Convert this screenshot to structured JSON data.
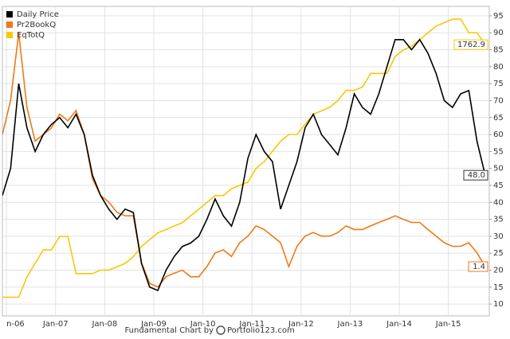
{
  "chart_data": {
    "type": "line",
    "credit": "Fundamental Chart by",
    "credit_brand": "Portfolio123.com",
    "x": [
      "2005-12",
      "2006-02",
      "2006-04",
      "2006-06",
      "2006-08",
      "2006-10",
      "2006-12",
      "2007-02",
      "2007-04",
      "2007-06",
      "2007-08",
      "2007-10",
      "2007-12",
      "2008-02",
      "2008-04",
      "2008-06",
      "2008-08",
      "2008-10",
      "2008-12",
      "2009-02",
      "2009-04",
      "2009-06",
      "2009-08",
      "2009-10",
      "2009-12",
      "2010-02",
      "2010-04",
      "2010-06",
      "2010-08",
      "2010-10",
      "2010-12",
      "2011-02",
      "2011-04",
      "2011-06",
      "2011-08",
      "2011-10",
      "2011-12",
      "2012-02",
      "2012-04",
      "2012-06",
      "2012-08",
      "2012-10",
      "2012-12",
      "2013-02",
      "2013-04",
      "2013-06",
      "2013-08",
      "2013-10",
      "2013-12",
      "2014-02",
      "2014-04",
      "2014-06",
      "2014-08",
      "2014-10",
      "2014-12",
      "2015-02",
      "2015-04",
      "2015-06",
      "2015-08",
      "2015-10"
    ],
    "xlim": [
      "2005-12",
      "2015-11"
    ],
    "xticks": [
      {
        "value": "2006-01",
        "label": "n-06"
      },
      {
        "value": "2007-01",
        "label": "Jan-07"
      },
      {
        "value": "2008-01",
        "label": "Jan-08"
      },
      {
        "value": "2009-01",
        "label": "Jan-09"
      },
      {
        "value": "2010-01",
        "label": "Jan-10"
      },
      {
        "value": "2011-01",
        "label": "Jan-11"
      },
      {
        "value": "2012-01",
        "label": "Jan-12"
      },
      {
        "value": "2013-01",
        "label": "Jan-13"
      },
      {
        "value": "2014-01",
        "label": "Jan-14"
      },
      {
        "value": "2015-01",
        "label": "Jan-15"
      }
    ],
    "ylim": [
      6.5,
      97.8
    ],
    "yticks": [
      10,
      15,
      20,
      25,
      30,
      35,
      40,
      45,
      50,
      55,
      60,
      65,
      70,
      75,
      80,
      85,
      90,
      95
    ],
    "grid": true,
    "legend": "top-left",
    "series": [
      {
        "name": "Daily Price",
        "color": "#000000",
        "end_label": "48.0",
        "values": [
          42,
          50,
          75,
          62,
          55,
          60,
          63,
          65,
          62,
          66,
          60,
          48,
          42,
          38,
          35,
          38,
          37,
          22,
          15,
          14,
          20,
          24,
          27,
          28,
          30,
          35,
          41,
          36,
          33,
          40,
          53,
          60,
          55,
          52,
          38,
          45,
          52,
          62,
          66,
          60,
          57,
          54,
          62,
          72,
          68,
          66,
          72,
          80,
          88,
          88,
          85,
          88,
          84,
          78,
          70,
          68,
          72,
          73,
          58,
          48.0
        ]
      },
      {
        "name": "Pr2BookQ",
        "color": "#f07818",
        "end_label": "1.4",
        "ylim": [
          0.43,
          6.52
        ],
        "values": [
          4.0,
          4.67,
          6.0,
          4.53,
          3.87,
          4.0,
          4.13,
          4.4,
          4.27,
          4.47,
          4.0,
          3.13,
          2.8,
          2.67,
          2.47,
          2.4,
          2.4,
          1.47,
          1.07,
          1.0,
          1.2,
          1.27,
          1.33,
          1.2,
          1.2,
          1.4,
          1.67,
          1.73,
          1.6,
          1.87,
          2.0,
          2.2,
          2.13,
          2.0,
          1.87,
          1.4,
          1.8,
          2.0,
          2.07,
          2.0,
          2.0,
          2.07,
          2.2,
          2.13,
          2.13,
          2.2,
          2.27,
          2.33,
          2.4,
          2.33,
          2.27,
          2.27,
          2.13,
          2.0,
          1.87,
          1.8,
          1.8,
          1.87,
          1.67,
          1.4
        ]
      },
      {
        "name": "EqTotQ",
        "color": "#f8c808",
        "end_label": "1762.9",
        "ylim": [
          132.5,
          1993
        ],
        "values": [
          245,
          245,
          245,
          367,
          448,
          530,
          530,
          611,
          611,
          387,
          387,
          387,
          408,
          408,
          428,
          448,
          489,
          550,
          591,
          632,
          652,
          673,
          693,
          734,
          774,
          815,
          856,
          856,
          897,
          917,
          937,
          1019,
          1060,
          1121,
          1182,
          1223,
          1223,
          1284,
          1345,
          1365,
          1386,
          1427,
          1488,
          1488,
          1508,
          1590,
          1590,
          1590,
          1692,
          1732,
          1753,
          1793,
          1834,
          1875,
          1895,
          1916,
          1916,
          1834,
          1834,
          1762.9
        ]
      }
    ]
  }
}
